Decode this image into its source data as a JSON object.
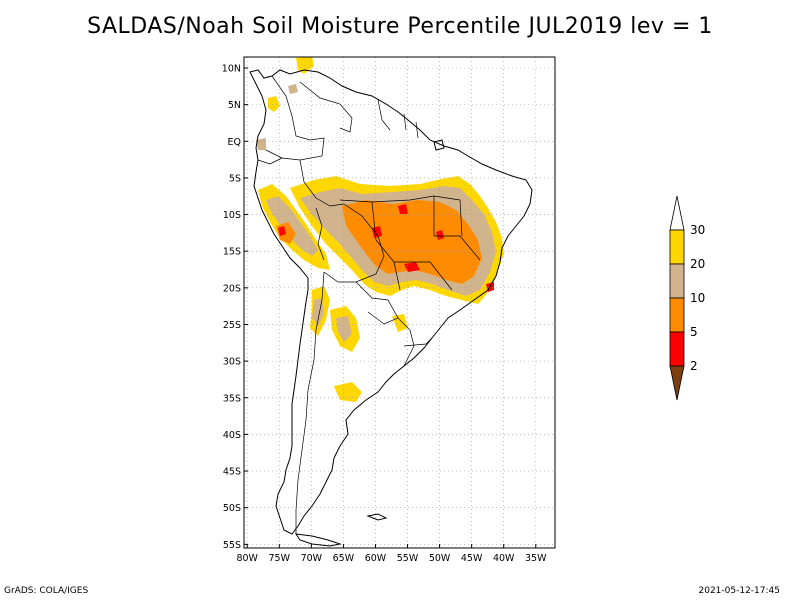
{
  "title": "SALDAS/Noah Soil Moisture Percentile JUL2019 lev = 1",
  "axes": {
    "lat_labels": [
      "10N",
      "5N",
      "EQ",
      "5S",
      "10S",
      "15S",
      "20S",
      "25S",
      "30S",
      "35S",
      "40S",
      "45S",
      "50S",
      "55S"
    ],
    "lat_values": [
      10,
      5,
      0,
      -5,
      -10,
      -15,
      -20,
      -25,
      -30,
      -35,
      -40,
      -45,
      -50,
      -55
    ],
    "lon_labels": [
      "80W",
      "75W",
      "70W",
      "65W",
      "60W",
      "55W",
      "50W",
      "45W",
      "40W",
      "35W"
    ],
    "lon_values": [
      -80,
      -75,
      -70,
      -65,
      -60,
      -55,
      -50,
      -45,
      -40,
      -35
    ],
    "lat_range": [
      -55.5,
      11.5
    ],
    "lon_range": [
      -80.5,
      -32
    ],
    "grid": "dotted"
  },
  "colorbar": {
    "boundaries": [
      "2",
      "5",
      "10",
      "20",
      "30"
    ],
    "colors": [
      "#7b3f12",
      "#ff0000",
      "#ff8c00",
      "#d2b48c",
      "#ffd700",
      "#ffffff"
    ],
    "classes": [
      {
        "range": "<2",
        "color": "#7b3f12"
      },
      {
        "range": "2-5",
        "color": "#ff0000"
      },
      {
        "range": "5-10",
        "color": "#ff8c00"
      },
      {
        "range": "10-20",
        "color": "#d2b48c"
      },
      {
        "range": "20-30",
        "color": "#ffd700"
      },
      {
        "range": ">30",
        "color": "#ffffff"
      }
    ]
  },
  "footer": {
    "left": "GrADS: COLA/IGES",
    "right": "2021-05-12-17:45"
  }
}
